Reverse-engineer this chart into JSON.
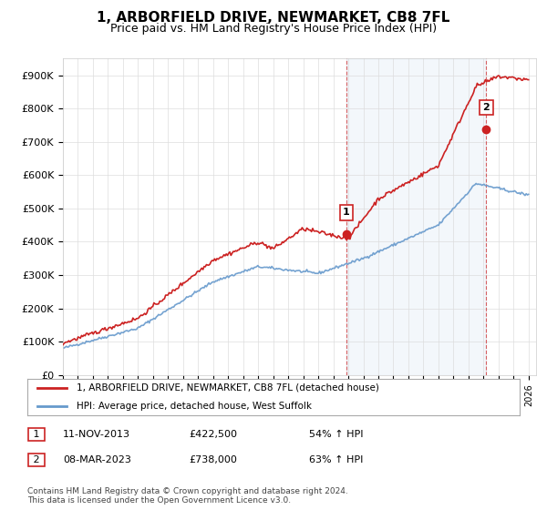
{
  "title": "1, ARBORFIELD DRIVE, NEWMARKET, CB8 7FL",
  "subtitle": "Price paid vs. HM Land Registry's House Price Index (HPI)",
  "yticks": [
    0,
    100000,
    200000,
    300000,
    400000,
    500000,
    600000,
    700000,
    800000,
    900000
  ],
  "ytick_labels": [
    "£0",
    "£100K",
    "£200K",
    "£300K",
    "£400K",
    "£500K",
    "£600K",
    "£700K",
    "£800K",
    "£900K"
  ],
  "ylim": [
    0,
    950000
  ],
  "xlim_start": 1995.5,
  "xlim_end": 2026.5,
  "xticks": [
    1995,
    1996,
    1997,
    1998,
    1999,
    2000,
    2001,
    2002,
    2003,
    2004,
    2005,
    2006,
    2007,
    2008,
    2009,
    2010,
    2011,
    2012,
    2013,
    2014,
    2015,
    2016,
    2017,
    2018,
    2019,
    2020,
    2021,
    2022,
    2023,
    2024,
    2025,
    2026
  ],
  "hpi_color": "#6699cc",
  "house_color": "#cc2222",
  "sale1_year": 2013.87,
  "sale1_price": 422500,
  "sale1_label": "1",
  "sale2_year": 2023.18,
  "sale2_price": 738000,
  "sale2_label": "2",
  "legend_house": "1, ARBORFIELD DRIVE, NEWMARKET, CB8 7FL (detached house)",
  "legend_hpi": "HPI: Average price, detached house, West Suffolk",
  "annotation1_date": "11-NOV-2013",
  "annotation1_price": "£422,500",
  "annotation1_info": "54% ↑ HPI",
  "annotation2_date": "08-MAR-2023",
  "annotation2_price": "£738,000",
  "annotation2_info": "63% ↑ HPI",
  "footnote": "Contains HM Land Registry data © Crown copyright and database right 2024.\nThis data is licensed under the Open Government Licence v3.0.",
  "background_color": "#ffffff",
  "plot_bg_color": "#ffffff",
  "grid_color": "#dddddd"
}
